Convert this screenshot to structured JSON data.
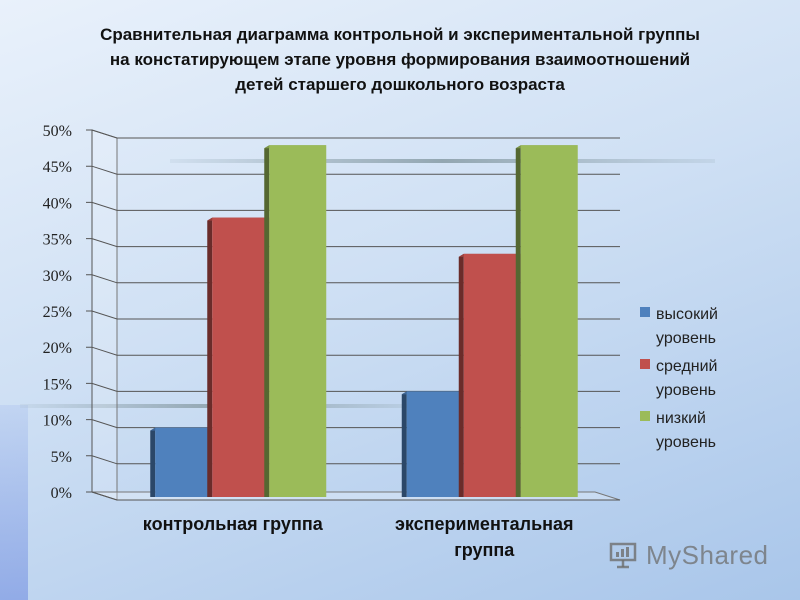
{
  "chart_data": {
    "type": "bar",
    "title": "Сравнительная диаграмма контрольной и экспериментальной группы на констатирующем этапе уровня формирования взаимоотношений детей старшего дошкольного возраста",
    "title_lines": [
      "Сравнительная диаграмма контрольной и экспериментальной группы",
      "на констатирующем этапе уровня формирования взаимоотношений",
      "детей старшего дошкольного возраста"
    ],
    "categories": [
      "контрольная группа",
      "экспериментальная группа"
    ],
    "category_lines": [
      [
        "контрольная группа"
      ],
      [
        "экспериментальная",
        "группа"
      ]
    ],
    "series": [
      {
        "name": "высокий уровень",
        "name_lines": [
          "высокий",
          "уровень"
        ],
        "values": [
          10,
          15
        ],
        "color": "#4f81bd"
      },
      {
        "name": "средний уровень",
        "name_lines": [
          "средний",
          "уровень"
        ],
        "values": [
          39,
          34
        ],
        "color": "#c0504d"
      },
      {
        "name": "низкий уровень",
        "name_lines": [
          "низкий",
          "уровень"
        ],
        "values": [
          49,
          49
        ],
        "color": "#9bbb59"
      }
    ],
    "yticks": [
      "0%",
      "5%",
      "10%",
      "15%",
      "20%",
      "25%",
      "30%",
      "35%",
      "40%",
      "45%",
      "50%"
    ],
    "ylim": [
      0,
      50
    ],
    "xlabel": "",
    "ylabel": "",
    "grid": true,
    "legend_position": "right"
  },
  "watermark": {
    "text": "MyShared",
    "icon": "presentation-board-icon"
  }
}
